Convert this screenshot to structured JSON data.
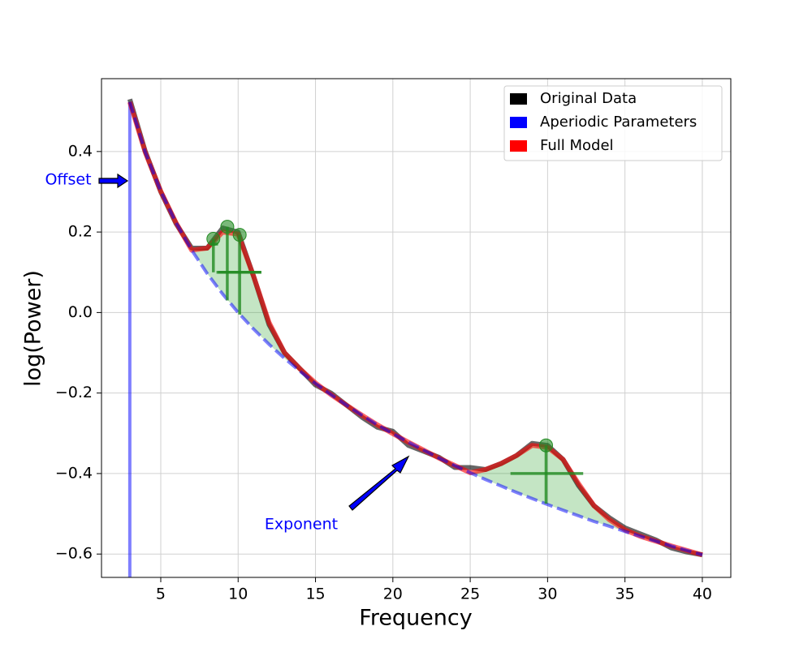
{
  "chart_data": {
    "type": "line",
    "xlabel": "Frequency",
    "ylabel": "log(Power)",
    "x": [
      3,
      4,
      5,
      6,
      7,
      8,
      9,
      10,
      11,
      12,
      13,
      14,
      15,
      16,
      17,
      18,
      19,
      20,
      21,
      22,
      23,
      24,
      25,
      26,
      27,
      28,
      29,
      30,
      31,
      32,
      33,
      34,
      35,
      36,
      37,
      38,
      39,
      40
    ],
    "series": [
      {
        "name": "Original Data",
        "color": "#000000",
        "values": [
          0.53,
          0.4,
          0.3,
          0.22,
          0.16,
          0.16,
          0.21,
          0.2,
          0.09,
          -0.03,
          -0.1,
          -0.14,
          -0.18,
          -0.2,
          -0.23,
          -0.26,
          -0.285,
          -0.295,
          -0.33,
          -0.345,
          -0.36,
          -0.385,
          -0.385,
          -0.39,
          -0.375,
          -0.355,
          -0.325,
          -0.33,
          -0.365,
          -0.43,
          -0.48,
          -0.51,
          -0.535,
          -0.55,
          -0.565,
          -0.585,
          -0.595,
          -0.602
        ]
      },
      {
        "name": "Full Model",
        "color": "#ff0000",
        "values": [
          0.523,
          0.398,
          0.301,
          0.222,
          0.155,
          0.16,
          0.2,
          0.195,
          0.09,
          -0.025,
          -0.1,
          -0.14,
          -0.175,
          -0.204,
          -0.23,
          -0.255,
          -0.279,
          -0.301,
          -0.322,
          -0.342,
          -0.362,
          -0.38,
          -0.398,
          -0.39,
          -0.375,
          -0.355,
          -0.33,
          -0.335,
          -0.365,
          -0.425,
          -0.48,
          -0.515,
          -0.54,
          -0.556,
          -0.568,
          -0.58,
          -0.591,
          -0.602
        ]
      },
      {
        "name": "Aperiodic Parameters",
        "color": "#0000ff",
        "dashed": true,
        "values": [
          0.523,
          0.398,
          0.301,
          0.222,
          0.155,
          0.097,
          0.046,
          0.0,
          -0.041,
          -0.079,
          -0.114,
          -0.146,
          -0.176,
          -0.204,
          -0.23,
          -0.255,
          -0.279,
          -0.301,
          -0.322,
          -0.342,
          -0.362,
          -0.38,
          -0.398,
          -0.415,
          -0.431,
          -0.447,
          -0.462,
          -0.477,
          -0.491,
          -0.505,
          -0.519,
          -0.531,
          -0.544,
          -0.556,
          -0.568,
          -0.58,
          -0.591,
          -0.602
        ]
      }
    ],
    "legend_order": [
      0,
      2,
      1
    ],
    "peaks": [
      {
        "x": 8.4,
        "y": 0.183,
        "base": 0.1,
        "width_y": 0.17,
        "width_x": [
          8.2,
          8.7
        ]
      },
      {
        "x": 9.3,
        "y": 0.213,
        "base": 0.03,
        "width_y": 0.1,
        "width_x": [
          8.7,
          11.5
        ]
      },
      {
        "x": 10.1,
        "y": 0.193,
        "base": -0.005,
        "width_y": 0.1,
        "width_x": [
          8.6,
          11.5
        ]
      },
      {
        "x": 29.9,
        "y": -0.33,
        "base": -0.475,
        "width_y": -0.4,
        "width_x": [
          27.6,
          32.3
        ]
      }
    ],
    "annotations": [
      "Offset",
      "Exponent"
    ],
    "xlim": [
      1.17,
      41.84
    ],
    "ylim": [
      -0.658,
      0.581
    ],
    "xticks": [
      5,
      10,
      15,
      20,
      25,
      30,
      35,
      40
    ],
    "yticks": [
      {
        "value": -0.6,
        "label": "−0.6"
      },
      {
        "value": -0.4,
        "label": "−0.4"
      },
      {
        "value": -0.2,
        "label": "−0.2"
      },
      {
        "value": 0.0,
        "label": "0.0"
      },
      {
        "value": 0.2,
        "label": "0.2"
      },
      {
        "value": 0.4,
        "label": "0.4"
      }
    ],
    "grid": true,
    "legend": "upper right"
  }
}
